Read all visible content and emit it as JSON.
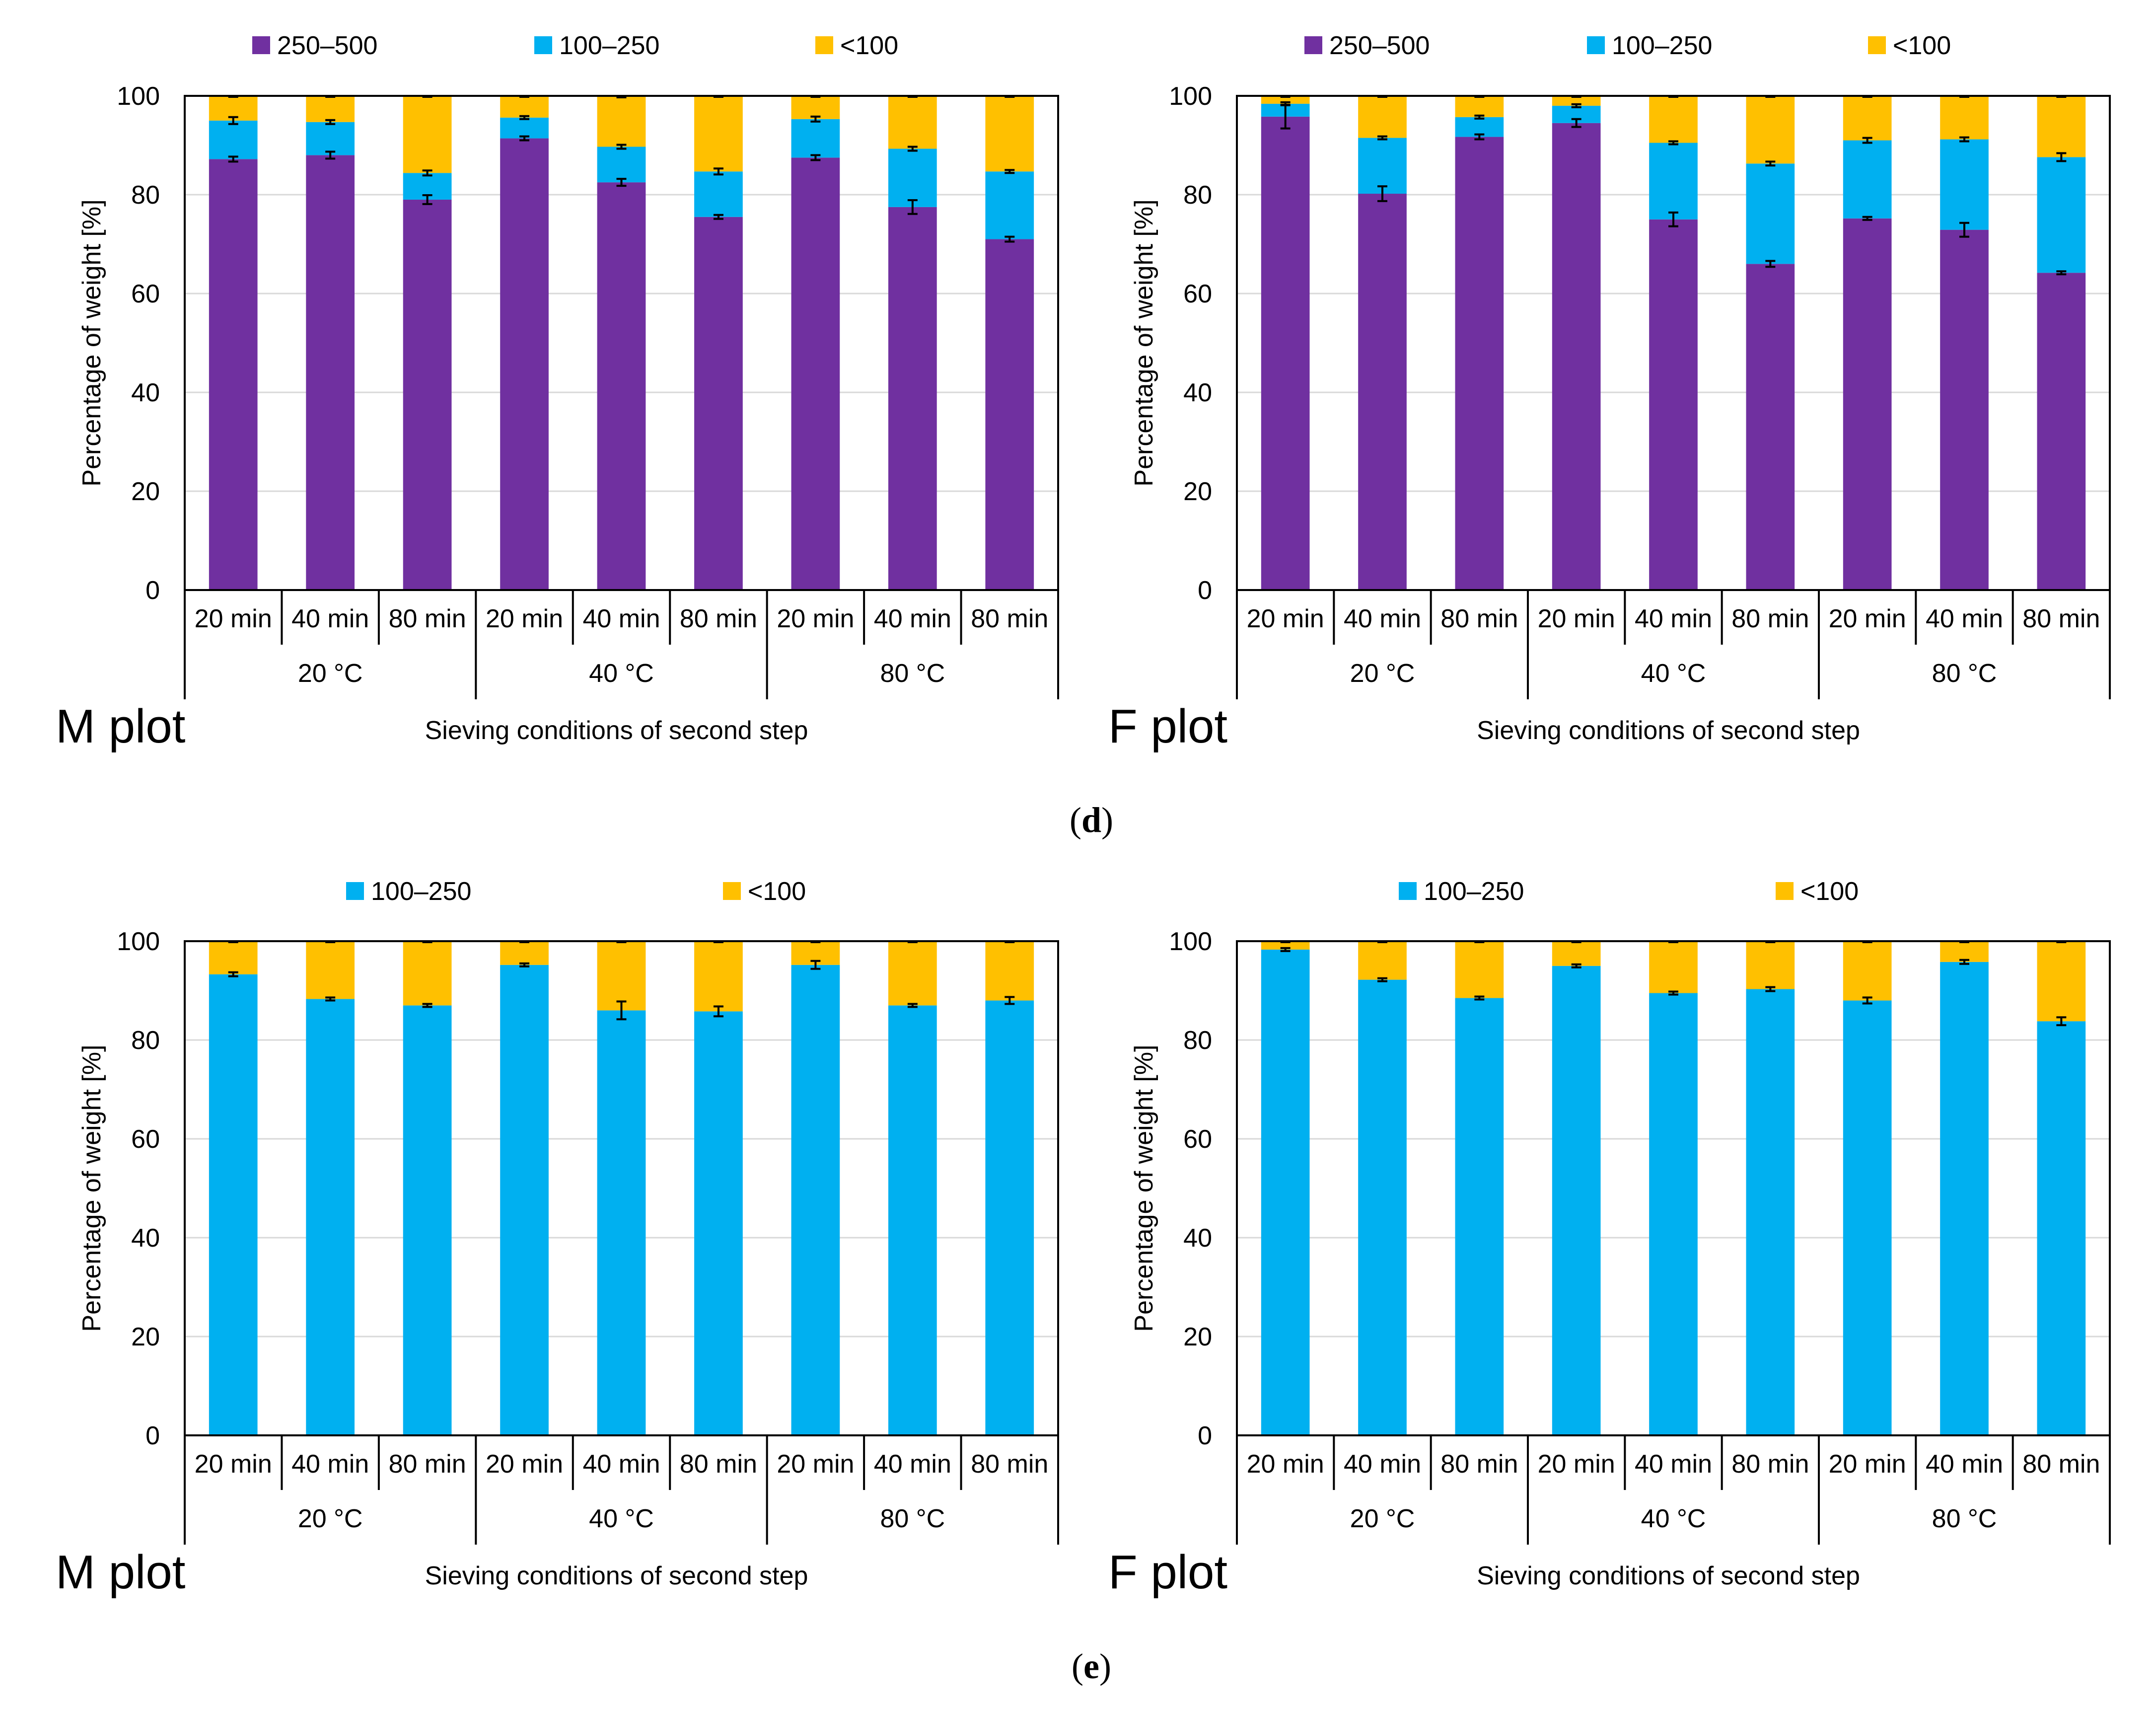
{
  "figure": {
    "panel_d_label_open": "(",
    "panel_d_label": "d",
    "panel_d_label_close": ")",
    "panel_e_label_open": "(",
    "panel_e_label": "e",
    "panel_e_label_close": ")"
  },
  "chart_data": [
    {
      "id": "d-m-plot",
      "type": "bar",
      "stacked": true,
      "plot_label": "M plot",
      "xlabel": "Sieving conditions of second step",
      "ylabel": "Percentage of weight [%]",
      "ylim": [
        0,
        100
      ],
      "yticks": [
        0,
        20,
        40,
        60,
        80,
        100
      ],
      "grid": true,
      "legend_position": "top",
      "categories": [
        "20 min",
        "40 min",
        "80 min",
        "20 min",
        "40 min",
        "80 min",
        "20 min",
        "40 min",
        "80 min"
      ],
      "groups": [
        "20 °C",
        "40 °C",
        "80 °C"
      ],
      "series": [
        {
          "name": "250–500",
          "color": "#7030A0",
          "values": [
            87.2,
            88.0,
            79.0,
            91.4,
            82.5,
            75.5,
            87.5,
            77.5,
            71.0
          ],
          "errors": [
            0.5,
            0.7,
            0.9,
            0.4,
            0.7,
            0.4,
            0.5,
            1.4,
            0.5
          ]
        },
        {
          "name": "100–250",
          "color": "#00B0F0",
          "values": [
            7.8,
            6.7,
            5.4,
            4.2,
            7.2,
            9.2,
            7.8,
            11.8,
            13.7
          ],
          "errors": [
            0.7,
            0.4,
            0.5,
            0.3,
            0.4,
            0.6,
            0.5,
            0.4,
            0.3
          ]
        },
        {
          "name": "<100",
          "color": "#FFC000",
          "values": [
            5.0,
            5.3,
            15.6,
            4.4,
            10.3,
            15.3,
            4.7,
            10.7,
            15.3
          ],
          "errors": [
            0.2,
            0.2,
            0.2,
            0.2,
            0.3,
            0.2,
            0.2,
            0.2,
            0.2
          ]
        }
      ]
    },
    {
      "id": "d-f-plot",
      "type": "bar",
      "stacked": true,
      "plot_label": "F plot",
      "xlabel": "Sieving conditions of second step",
      "ylabel": "Percentage of weight [%]",
      "ylim": [
        0,
        100
      ],
      "yticks": [
        0,
        20,
        40,
        60,
        80,
        100
      ],
      "grid": true,
      "legend_position": "top",
      "categories": [
        "20 min",
        "40 min",
        "80 min",
        "20 min",
        "40 min",
        "80 min",
        "20 min",
        "40 min",
        "80 min"
      ],
      "groups": [
        "20 °C",
        "40 °C",
        "80 °C"
      ],
      "series": [
        {
          "name": "250–500",
          "color": "#7030A0",
          "values": [
            95.8,
            80.2,
            91.7,
            94.5,
            75.0,
            66.0,
            75.2,
            72.9,
            64.2
          ],
          "errors": [
            2.4,
            1.5,
            0.5,
            0.8,
            1.4,
            0.6,
            0.3,
            1.4,
            0.3
          ]
        },
        {
          "name": "100–250",
          "color": "#00B0F0",
          "values": [
            2.6,
            11.3,
            4.0,
            3.5,
            15.5,
            20.3,
            15.8,
            18.3,
            23.4
          ],
          "errors": [
            0.3,
            0.3,
            0.3,
            0.3,
            0.3,
            0.4,
            0.5,
            0.4,
            0.8
          ]
        },
        {
          "name": "<100",
          "color": "#FFC000",
          "values": [
            1.6,
            8.5,
            4.3,
            2.0,
            9.5,
            13.7,
            9.0,
            8.8,
            12.4
          ],
          "errors": [
            0.2,
            0.2,
            0.2,
            0.2,
            0.2,
            0.2,
            0.2,
            0.2,
            0.2
          ]
        }
      ]
    },
    {
      "id": "e-m-plot",
      "type": "bar",
      "stacked": true,
      "plot_label": "M plot",
      "xlabel": "Sieving conditions of second step",
      "ylabel": "Percentage of weight [%]",
      "ylim": [
        0,
        100
      ],
      "yticks": [
        0,
        20,
        40,
        60,
        80,
        100
      ],
      "grid": true,
      "legend_position": "top",
      "categories": [
        "20 min",
        "40 min",
        "80 min",
        "20 min",
        "40 min",
        "80 min",
        "20 min",
        "40 min",
        "80 min"
      ],
      "groups": [
        "20 °C",
        "40 °C",
        "80 °C"
      ],
      "series": [
        {
          "name": "100–250",
          "color": "#00B0F0",
          "values": [
            93.3,
            88.3,
            87.0,
            95.2,
            86.0,
            85.8,
            95.2,
            87.0,
            88.0
          ],
          "errors": [
            0.4,
            0.3,
            0.3,
            0.3,
            1.8,
            1.0,
            0.8,
            0.3,
            0.7
          ]
        },
        {
          "name": "<100",
          "color": "#FFC000",
          "values": [
            6.7,
            11.7,
            13.0,
            4.8,
            14.0,
            14.2,
            4.8,
            13.0,
            12.0
          ],
          "errors": [
            0.2,
            0.2,
            0.2,
            0.2,
            0.2,
            0.2,
            0.2,
            0.2,
            0.2
          ]
        }
      ]
    },
    {
      "id": "e-f-plot",
      "type": "bar",
      "stacked": true,
      "plot_label": "F plot",
      "xlabel": "Sieving conditions of second step",
      "ylabel": "Percentage of weight [%]",
      "ylim": [
        0,
        100
      ],
      "yticks": [
        0,
        20,
        40,
        60,
        80,
        100
      ],
      "grid": true,
      "legend_position": "top",
      "categories": [
        "20 min",
        "40 min",
        "80 min",
        "20 min",
        "40 min",
        "80 min",
        "20 min",
        "40 min",
        "80 min"
      ],
      "groups": [
        "20 °C",
        "40 °C",
        "80 °C"
      ],
      "series": [
        {
          "name": "100–250",
          "color": "#00B0F0",
          "values": [
            98.3,
            92.2,
            88.5,
            95.0,
            89.5,
            90.3,
            88.0,
            95.8,
            83.8
          ],
          "errors": [
            0.3,
            0.3,
            0.3,
            0.3,
            0.3,
            0.4,
            0.6,
            0.4,
            0.8
          ]
        },
        {
          "name": "<100",
          "color": "#FFC000",
          "values": [
            1.7,
            7.8,
            11.5,
            5.0,
            10.5,
            9.7,
            12.0,
            4.2,
            16.2
          ],
          "errors": [
            0.2,
            0.2,
            0.2,
            0.2,
            0.2,
            0.2,
            0.2,
            0.2,
            0.2
          ]
        }
      ]
    }
  ]
}
